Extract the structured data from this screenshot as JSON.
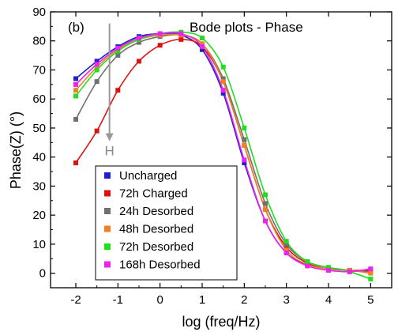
{
  "chart_data": {
    "type": "scatter",
    "panel_label": "(b)",
    "title": "Bode plots - Phase",
    "xlabel": "log (freq/Hz)",
    "ylabel": "Phase(Z) (°)",
    "xlim": [
      -2.6,
      5.5
    ],
    "ylim": [
      -5,
      90
    ],
    "xticks": [
      -2,
      -1,
      0,
      1,
      2,
      3,
      4,
      5
    ],
    "yticks": [
      0,
      10,
      20,
      30,
      40,
      50,
      60,
      70,
      80,
      90
    ],
    "grid": false,
    "legend_position": "bottom-left",
    "annotation": {
      "text": "H",
      "arrow_from": [
        -1.2,
        86
      ],
      "arrow_to": [
        -1.2,
        46
      ]
    },
    "series": [
      {
        "name": "Uncharged",
        "color": "#1f1fcc",
        "fit_color": "#1f1fcc",
        "x": [
          -2.0,
          -1.5,
          -1.0,
          -0.5,
          0.0,
          0.5,
          1.0,
          1.5,
          2.0,
          2.5,
          3.0,
          3.5,
          4.0,
          4.5,
          5.0
        ],
        "y": [
          67,
          73,
          78,
          81.5,
          82.5,
          82,
          77,
          62,
          38,
          18,
          7,
          3,
          1.5,
          1,
          1
        ]
      },
      {
        "name": "72h Charged",
        "color": "#dd1111",
        "fit_color": "#dd1111",
        "x": [
          -2.0,
          -1.5,
          -1.0,
          -0.5,
          0.0,
          0.5,
          1.0,
          1.5,
          2.0,
          2.5,
          3.0,
          3.5,
          4.0,
          4.5,
          5.0
        ],
        "y": [
          38,
          49,
          63,
          73,
          78.5,
          80.5,
          78,
          66,
          44,
          22,
          9,
          3.5,
          1.5,
          1,
          1
        ]
      },
      {
        "name": "24h Desorbed",
        "color": "#707070",
        "fit_color": "#707070",
        "x": [
          -2.0,
          -1.5,
          -1.0,
          -0.5,
          0.0,
          0.5,
          1.0,
          1.5,
          2.0,
          2.5,
          3.0,
          3.5,
          4.0,
          4.5,
          5.0
        ],
        "y": [
          53,
          66,
          75,
          79.5,
          81.5,
          82,
          79,
          67,
          46,
          24,
          10,
          4,
          2,
          1,
          0.5
        ]
      },
      {
        "name": "48h Desorbed",
        "color": "#f08020",
        "fit_color": "#f08020",
        "x": [
          -2.0,
          -1.5,
          -1.0,
          -0.5,
          0.0,
          0.5,
          1.0,
          1.5,
          2.0,
          2.5,
          3.0,
          3.5,
          4.0,
          4.5,
          5.0
        ],
        "y": [
          63,
          71,
          77,
          80.5,
          82,
          82,
          79,
          66,
          44,
          22,
          8,
          3,
          1.5,
          1,
          0
        ]
      },
      {
        "name": "72h Desorbed",
        "color": "#22dd22",
        "fit_color": "#22dd22",
        "x": [
          -2.0,
          -1.5,
          -1.0,
          -0.5,
          0.0,
          0.5,
          1.0,
          1.5,
          2.0,
          2.5,
          3.0,
          3.5,
          4.0,
          4.5,
          5.0
        ],
        "y": [
          61,
          70,
          76.5,
          80.5,
          82.5,
          83,
          81,
          71,
          50,
          27,
          11,
          4,
          2,
          0.5,
          -2
        ]
      },
      {
        "name": "168h Desorbed",
        "color": "#ee22ee",
        "fit_color": "#ee22ee",
        "x": [
          -2.0,
          -1.5,
          -1.0,
          -0.5,
          0.0,
          0.5,
          1.0,
          1.5,
          2.0,
          2.5,
          3.0,
          3.5,
          4.0,
          4.5,
          5.0
        ],
        "y": [
          65,
          72,
          77.5,
          81,
          82.5,
          82.5,
          78,
          63,
          39,
          18,
          7,
          2.5,
          1,
          0.5,
          1.5
        ]
      }
    ]
  }
}
